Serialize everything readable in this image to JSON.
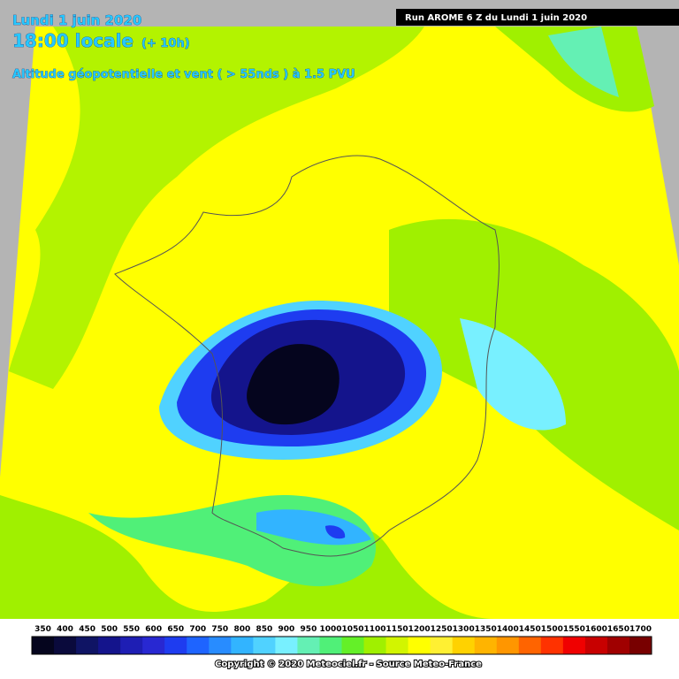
{
  "header": {
    "date": "Lundi 1 juin 2020",
    "time": "18:00 locale",
    "offset": "(+ 10h)",
    "subtitle": "Altitude géopotentielle et vent ( > 55nds ) à 1.5 PVU",
    "run": "Run AROME 6 Z du Lundi 1 juin 2020"
  },
  "legend": {
    "labels": [
      350,
      400,
      450,
      500,
      550,
      600,
      650,
      700,
      750,
      800,
      850,
      900,
      950,
      1000,
      1050,
      1100,
      1150,
      1200,
      1250,
      1300,
      1350,
      1400,
      1450,
      1500,
      1550,
      1600,
      1650,
      1700
    ],
    "colors": [
      "#05051e",
      "#0a0a3c",
      "#0f1464",
      "#14148c",
      "#1e1eb4",
      "#2828d2",
      "#1e3cf0",
      "#1e64ff",
      "#288cff",
      "#32b4ff",
      "#50d2ff",
      "#78f0ff",
      "#64f0b4",
      "#50f078",
      "#64f028",
      "#a0f000",
      "#d2f500",
      "#ffff00",
      "#fff032",
      "#ffd200",
      "#ffb400",
      "#ff9600",
      "#ff6400",
      "#ff3200",
      "#f00000",
      "#c80000",
      "#a00000",
      "#780000"
    ]
  },
  "footer": "Copyright © 2020 Meteociel.fr - Source Meteo-France"
}
